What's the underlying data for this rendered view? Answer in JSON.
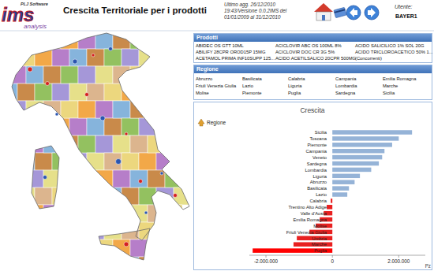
{
  "header": {
    "logo": {
      "brand": "PLJ Software",
      "name": "ims",
      "suffix": "analysis"
    },
    "title": "Crescita Territoriale per i prodotti",
    "info": [
      "Ultimo agg. 26/12/2010",
      "19:43/Versione 0.0.2IMS del",
      "01/01/2009 al 31/12/2010"
    ],
    "user_label": "Utente:",
    "user": "BAYER1"
  },
  "products": {
    "title": "Prodotti",
    "items": [
      "ABIDEC OS GTT 10ML",
      "ACICLOVIR ABC OS 100ML 8%",
      "ACIDO SALICILICO 1% SOL 20G",
      "ABILIFY 28CPR OROD15P 15MG",
      "ACICLOVIR DOC CR 3G 5%",
      "ACIDO TRICLOROACETICO 50% 1...",
      "ACETAMOL PRIMA INF10SUPP 125...",
      "ACIDO ACETILSALICO 20CPR 500MG",
      "(Concorrenti)"
    ]
  },
  "regions": {
    "title": "Regione",
    "items": [
      "Abruzzo",
      "Basilicata",
      "Calabria",
      "Campania",
      "Emilia Romagna",
      "Friuli Venezia Giulia",
      "Lazio",
      "Liguria",
      "Lombardia",
      "Marche",
      "Molise",
      "Piemonte",
      "Puglia",
      "Sardegna",
      "Sicilia"
    ]
  },
  "chart_panel": {
    "drill_up": "Regione"
  },
  "chart_data": {
    "type": "bar",
    "orientation": "horizontal",
    "title": "Crescita",
    "x_label": "Pz",
    "categories": [
      "Sicilia",
      "Toscana",
      "Piemonte",
      "Campania",
      "Veneto",
      "Sardegna",
      "Lombardia",
      "Liguria",
      "Abruzzo",
      "Basilicata",
      "Lazio",
      "Calabria",
      "Trentino Alto Adige",
      "Valle d'Aosta",
      "Emilia Romagna",
      "Molise",
      "Friuli Venezia Giulia",
      "Umbria",
      "Marche",
      "Puglia"
    ],
    "values": [
      2400000,
      2000000,
      1800000,
      1570000,
      1500000,
      1400000,
      1170000,
      830000,
      670000,
      500000,
      450000,
      -50000,
      -170000,
      -260000,
      -380000,
      -500000,
      -690000,
      -1070000,
      -1170000,
      -2400000
    ],
    "colors": [
      "#95b3d7",
      "#95b3d7",
      "#95b3d7",
      "#95b3d7",
      "#95b3d7",
      "#95b3d7",
      "#95b3d7",
      "#95b3d7",
      "#95b3d7",
      "#95b3d7",
      "#95b3d7",
      "#e82020",
      "#e82020",
      "#e82020",
      "#e82020",
      "#e82020",
      "#e82020",
      "#e82020",
      "#e82020",
      "#ff0000"
    ],
    "xlim": [
      -2500000,
      2800000
    ],
    "xticks": [
      {
        "value": -2000000,
        "label": "-2.000.000"
      },
      0,
      {
        "value": 2000000,
        "label": "2.000.000"
      }
    ],
    "grid": false,
    "data_labels": false
  }
}
